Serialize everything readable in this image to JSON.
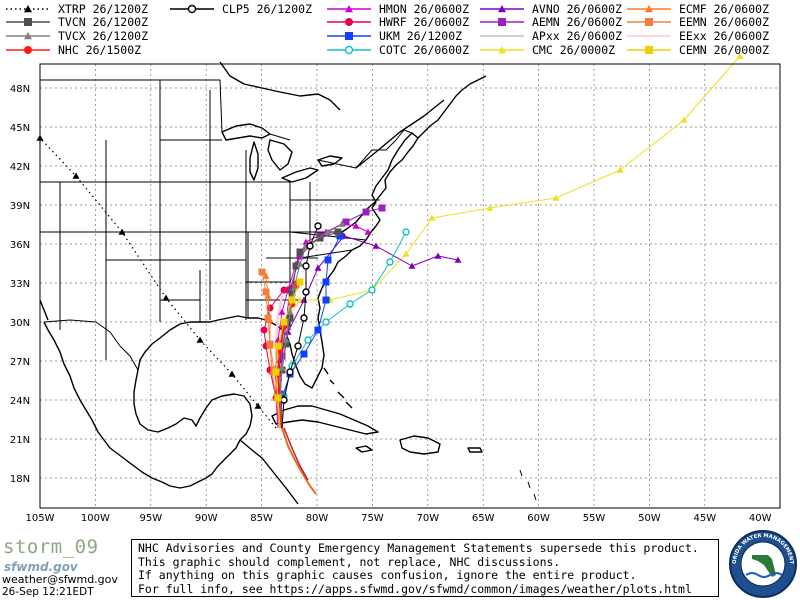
{
  "legend": [
    {
      "label": "XTRP 26/1200Z",
      "color": "#000000",
      "style": "dots",
      "marker": "triangle"
    },
    {
      "label": "TVCN 26/1200Z",
      "color": "#505050",
      "style": "solid",
      "marker": "square"
    },
    {
      "label": "TVCX 26/1200Z",
      "color": "#808080",
      "style": "solid",
      "marker": "triangle"
    },
    {
      "label": "NHC 26/1500Z",
      "color": "#ff1a1a",
      "style": "solid",
      "marker": "circle"
    },
    {
      "label": "CLP5 26/1200Z",
      "color": "#000000",
      "style": "solid",
      "marker": "open-circle"
    },
    {
      "label": "HMON 26/0600Z",
      "color": "#d400d4",
      "style": "solid",
      "marker": "triangle"
    },
    {
      "label": "HWRF 26/0600Z",
      "color": "#e8004f",
      "style": "solid",
      "marker": "circle"
    },
    {
      "label": "UKM 26/1200Z",
      "color": "#1040ff",
      "style": "solid",
      "marker": "square"
    },
    {
      "label": "COTC 26/0600Z",
      "color": "#10c0c0",
      "style": "solid",
      "marker": "open-circle"
    },
    {
      "label": "AVNO 26/0600Z",
      "color": "#8000c0",
      "style": "solid",
      "marker": "triangle"
    },
    {
      "label": "AEMN 26/0600Z",
      "color": "#9a20c0",
      "style": "solid",
      "marker": "square"
    },
    {
      "label": "APxx 26/0600Z",
      "color": "#c0c0c0",
      "style": "solid",
      "marker": "none"
    },
    {
      "label": "CMC 26/0000Z",
      "color": "#f0e020",
      "style": "solid",
      "marker": "triangle"
    },
    {
      "label": "ECMF 26/0600Z",
      "color": "#ff7a20",
      "style": "solid",
      "marker": "triangle"
    },
    {
      "label": "EEMN 26/0600Z",
      "color": "#f08040",
      "style": "solid",
      "marker": "square"
    },
    {
      "label": "EExx 26/0600Z",
      "color": "#f8d0d0",
      "style": "solid",
      "marker": "none"
    },
    {
      "label": "CEMN 26/0000Z",
      "color": "#f0d000",
      "style": "solid",
      "marker": "square"
    }
  ],
  "map": {
    "lon_labels": [
      "105W",
      "100W",
      "95W",
      "90W",
      "85W",
      "80W",
      "75W",
      "70W",
      "65W",
      "60W",
      "55W",
      "50W",
      "45W",
      "40W"
    ],
    "lat_labels": [
      "48N",
      "45N",
      "42N",
      "39N",
      "36N",
      "33N",
      "30N",
      "27N",
      "24N",
      "21N",
      "18N"
    ]
  },
  "footer": {
    "storm_name": "storm_09",
    "logo_text": "sfwmd.gov",
    "email": "weather@sfwmd.gov",
    "timestamp": "26-Sep 12:21EDT",
    "disclaimer": [
      "NHC Advisories and County Emergency Management Statements supersede this product.",
      "This graphic should complement, not replace, NHC discussions.",
      "If anything on this graphic causes confusion, ignore the entire product.",
      "For full info, see  https://apps.sfwmd.gov/sfwmd/common/images/weather/plots.html"
    ],
    "seal_text": "SOUTH FLORIDA WATER MANAGEMENT DISTRICT"
  }
}
